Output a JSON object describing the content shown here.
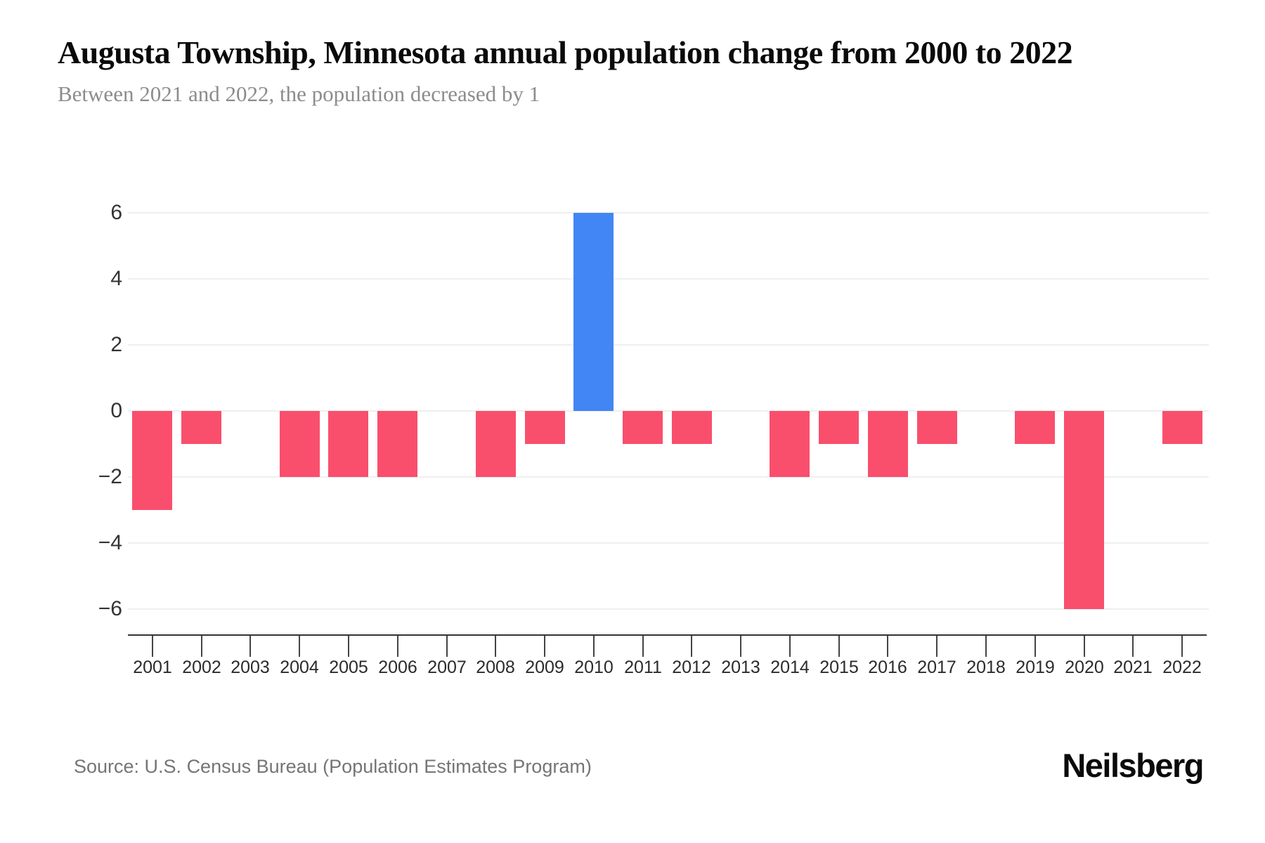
{
  "chart_data": {
    "type": "bar",
    "title": "Augusta Township, Minnesota annual population change from 2000 to 2022",
    "subtitle": "Between 2021 and 2022, the population decreased by 1",
    "categories": [
      "2001",
      "2002",
      "2003",
      "2004",
      "2005",
      "2006",
      "2007",
      "2008",
      "2009",
      "2010",
      "2011",
      "2012",
      "2013",
      "2014",
      "2015",
      "2016",
      "2017",
      "2018",
      "2019",
      "2020",
      "2021",
      "2022"
    ],
    "values": [
      -3,
      -1,
      0,
      -2,
      -2,
      -2,
      0,
      -2,
      -1,
      6,
      -1,
      -1,
      0,
      -2,
      -1,
      -2,
      -1,
      0,
      -1,
      -6,
      0,
      -1
    ],
    "xlabel": "",
    "ylabel": "",
    "yticks": [
      6,
      4,
      2,
      0,
      -2,
      -4,
      -6
    ],
    "ylim": [
      -6.8,
      6.9
    ],
    "grid": true,
    "legend": false,
    "positive_color": "#4285F4",
    "negative_color": "#F94F6D",
    "axis_color": "#333333",
    "grid_color": "#efefef"
  },
  "footer": {
    "source": "Source: U.S. Census Bureau (Population Estimates Program)",
    "brand": "Neilsberg"
  }
}
